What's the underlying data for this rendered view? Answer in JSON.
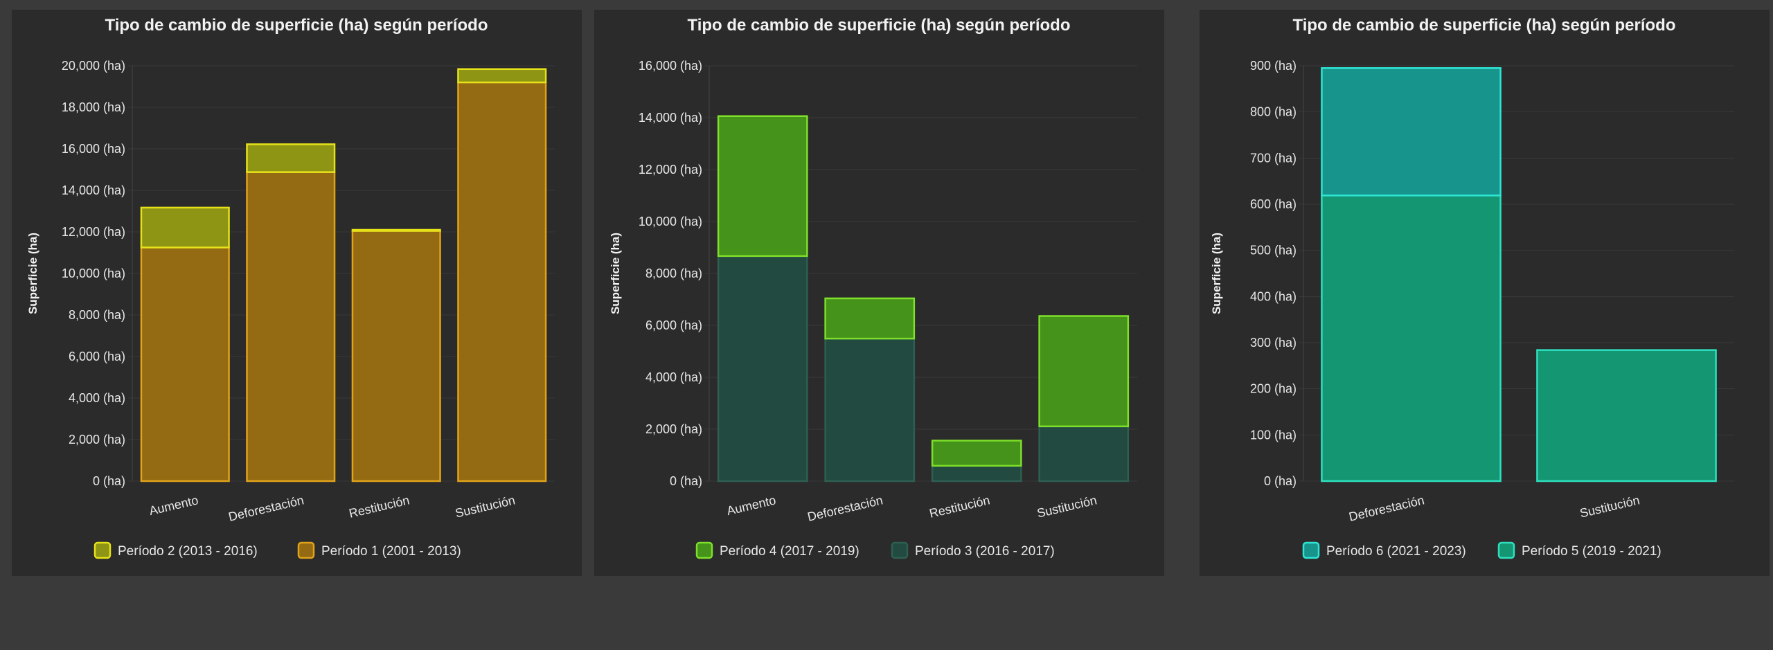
{
  "chart_data": [
    {
      "type": "bar",
      "stacked": true,
      "title": "Tipo de cambio de superficie (ha) según período",
      "ylabel": "Superficie (ha)",
      "xlabel": "",
      "ylim": [
        0,
        20000
      ],
      "yticks": [
        0,
        2000,
        4000,
        6000,
        8000,
        10000,
        12000,
        14000,
        16000,
        18000,
        20000
      ],
      "tick_labels": [
        "0 (ha)",
        "2,000 (ha)",
        "4,000 (ha)",
        "6,000 (ha)",
        "8,000 (ha)",
        "10,000 (ha)",
        "12,000 (ha)",
        "14,000 (ha)",
        "16,000 (ha)",
        "18,000 (ha)",
        "20,000 (ha)"
      ],
      "categories": [
        "Aumento",
        "Deforestación",
        "Restitución",
        "Sustitución"
      ],
      "series": [
        {
          "name": "Período 1 (2001 - 2013)",
          "values": [
            11250,
            14880,
            12050,
            19200
          ],
          "fill": "#946a12",
          "stroke": "#e0a31a"
        },
        {
          "name": "Período 2 (2013 - 2016)",
          "values": [
            1920,
            1340,
            50,
            640
          ],
          "fill": "#8e9514",
          "stroke": "#e6e21a"
        }
      ],
      "legend": [
        "Período 2 (2013 - 2016)",
        "Período 1 (2001 - 2013)"
      ],
      "legend_position": "bottom"
    },
    {
      "type": "bar",
      "stacked": true,
      "title": "Tipo de cambio de superficie (ha) según período",
      "ylabel": "Superficie (ha)",
      "xlabel": "",
      "ylim": [
        0,
        16000
      ],
      "yticks": [
        0,
        2000,
        4000,
        6000,
        8000,
        10000,
        12000,
        14000,
        16000
      ],
      "tick_labels": [
        "0 (ha)",
        "2,000 (ha)",
        "4,000 (ha)",
        "6,000 (ha)",
        "8,000 (ha)",
        "10,000 (ha)",
        "12,000 (ha)",
        "14,000 (ha)",
        "16,000 (ha)"
      ],
      "categories": [
        "Aumento",
        "Deforestación",
        "Restitución",
        "Sustitución"
      ],
      "series": [
        {
          "name": "Período 3 (2016 - 2017)",
          "values": [
            8670,
            5490,
            590,
            2110
          ],
          "fill": "#224a41",
          "stroke": "#2e5f52"
        },
        {
          "name": "Período 4 (2017 - 2019)",
          "values": [
            5390,
            1550,
            970,
            4250
          ],
          "fill": "#45931a",
          "stroke": "#7ee02a"
        }
      ],
      "legend": [
        "Período 4 (2017 - 2019)",
        "Período 3 (2016 - 2017)"
      ],
      "legend_position": "bottom"
    },
    {
      "type": "bar",
      "stacked": true,
      "title": "Tipo de cambio de superficie (ha) según período",
      "ylabel": "Superficie (ha)",
      "xlabel": "",
      "ylim": [
        0,
        900
      ],
      "yticks": [
        0,
        100,
        200,
        300,
        400,
        500,
        600,
        700,
        800,
        900
      ],
      "tick_labels": [
        "0 (ha)",
        "100 (ha)",
        "200 (ha)",
        "300 (ha)",
        "400 (ha)",
        "500 (ha)",
        "600 (ha)",
        "700 (ha)",
        "800 (ha)",
        "900 (ha)"
      ],
      "categories": [
        "Deforestación",
        "Sustitución"
      ],
      "series": [
        {
          "name": "Período 5 (2019 - 2021)",
          "values": [
            619,
            284
          ],
          "fill": "#159673",
          "stroke": "#2ee0c0"
        },
        {
          "name": "Período 6 (2021 - 2023)",
          "values": [
            276,
            0
          ],
          "fill": "#17948c",
          "stroke": "#2ee6d6"
        }
      ],
      "legend": [
        "Período 6 (2021 - 2023)",
        "Período 5 (2019 - 2021)"
      ],
      "legend_position": "bottom"
    }
  ]
}
